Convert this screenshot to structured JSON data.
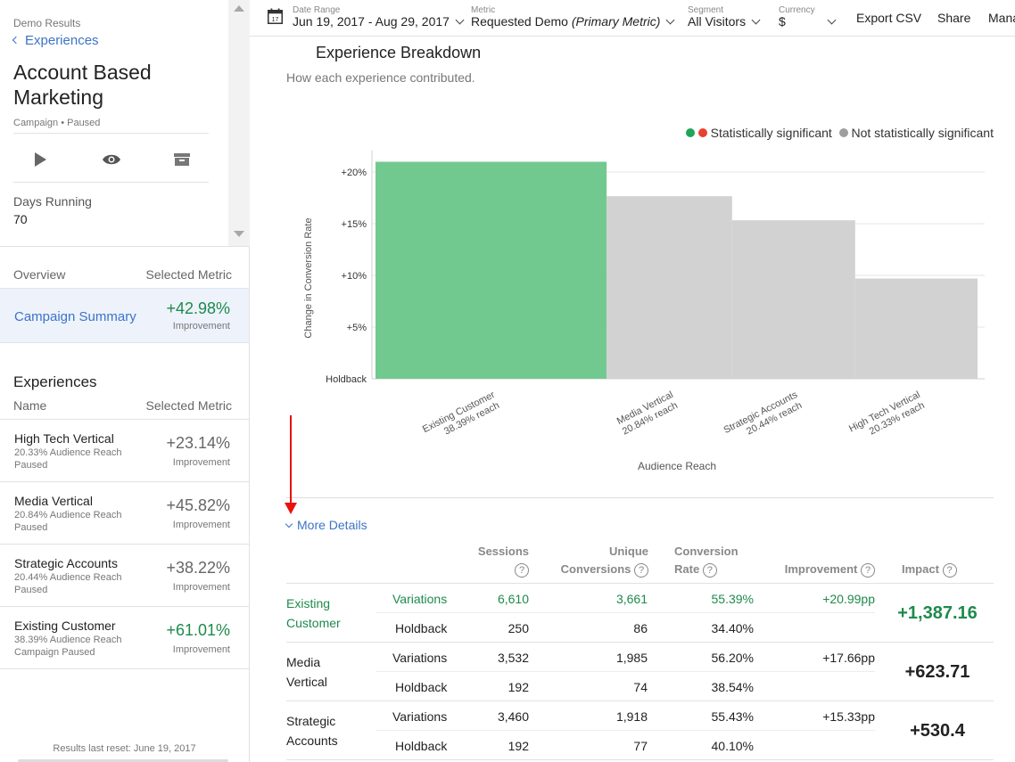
{
  "sidebar": {
    "breadcrumb": "Demo Results",
    "back_link": "Experiences",
    "campaign_title": "Account Based Marketing",
    "campaign_type": "Campaign",
    "campaign_status": "Paused",
    "days_running_label": "Days Running",
    "days_running_value": "70",
    "overview_label": "Overview",
    "selected_metric_label": "Selected Metric",
    "summary": {
      "label": "Campaign Summary",
      "value": "+42.98%",
      "sub": "Improvement"
    },
    "experiences_title": "Experiences",
    "name_label": "Name",
    "experiences": [
      {
        "name": "High Tech Vertical",
        "reach": "20.33% Audience Reach",
        "status": "Paused",
        "value": "+23.14%",
        "sub": "Improvement"
      },
      {
        "name": "Media Vertical",
        "reach": "20.84% Audience Reach",
        "status": "Paused",
        "value": "+45.82%",
        "sub": "Improvement"
      },
      {
        "name": "Strategic Accounts",
        "reach": "20.44% Audience Reach",
        "status": "Paused",
        "value": "+38.22%",
        "sub": "Improvement"
      },
      {
        "name": "Existing Customer",
        "reach": "38.39% Audience Reach",
        "status": "Campaign Paused",
        "value": "+61.01%",
        "sub": "Improvement"
      }
    ],
    "reset_text": "Results last reset: June 19, 2017"
  },
  "topbar": {
    "date_range_label": "Date Range",
    "date_range_value": "Jun 19, 2017 - Aug 29, 2017",
    "calendar_day": "17",
    "metric_label": "Metric",
    "metric_value": "Requested Demo",
    "metric_note": "(Primary Metric)",
    "segment_label": "Segment",
    "segment_value": "All Visitors",
    "currency_label": "Currency",
    "currency_value": "$",
    "export_label": "Export CSV",
    "share_label": "Share",
    "manage_label": "Mana"
  },
  "breakdown": {
    "title": "Experience Breakdown",
    "subtitle": "How each experience contributed.",
    "legend_sig": "Statistically significant",
    "legend_not_sig": "Not statistically significant",
    "more_details": "More Details"
  },
  "chart_data": {
    "type": "bar",
    "ylabel": "Change in Conversion Rate",
    "xlabel": "Audience Reach",
    "ylim": [
      0,
      22
    ],
    "yticks": [
      {
        "value": 0,
        "label": "Holdback"
      },
      {
        "value": 5,
        "label": "+5%"
      },
      {
        "value": 10,
        "label": "+10%"
      },
      {
        "value": 15,
        "label": "+15%"
      },
      {
        "value": 20,
        "label": "+20%"
      }
    ],
    "categories": [
      "Existing Customer",
      "Media Vertical",
      "Strategic Accounts",
      "High Tech Vertical"
    ],
    "reach_labels": [
      "38.39% reach",
      "20.84% reach",
      "20.44% reach",
      "20.33% reach"
    ],
    "reach": [
      38.39,
      20.84,
      20.44,
      20.33
    ],
    "values": [
      20.99,
      17.66,
      15.33,
      9.7
    ],
    "significant": [
      true,
      false,
      false,
      false
    ],
    "colors": {
      "significant": "#72c98f",
      "not_significant": "#d2d2d2",
      "sig_dot_green": "#1fa55a",
      "sig_dot_red": "#e8412f",
      "not_sig_dot": "#9e9e9e"
    },
    "grid": true,
    "legend": "top-right"
  },
  "table": {
    "headers": {
      "sessions": "Sessions",
      "unique1": "Unique",
      "unique2": "Conversions",
      "rate1": "Conversion",
      "rate2": "Rate",
      "improvement": "Improvement",
      "impact": "Impact"
    },
    "groups": [
      {
        "name_line1": "Existing",
        "name_line2": "Customer",
        "significant": true,
        "variations": {
          "label": "Variations",
          "sessions": "6,610",
          "conversions": "3,661",
          "rate": "55.39%",
          "improvement": "+20.99pp"
        },
        "holdback": {
          "label": "Holdback",
          "sessions": "250",
          "conversions": "86",
          "rate": "34.40%"
        },
        "impact": "+1,387.16"
      },
      {
        "name_line1": "Media",
        "name_line2": "Vertical",
        "significant": false,
        "variations": {
          "label": "Variations",
          "sessions": "3,532",
          "conversions": "1,985",
          "rate": "56.20%",
          "improvement": "+17.66pp"
        },
        "holdback": {
          "label": "Holdback",
          "sessions": "192",
          "conversions": "74",
          "rate": "38.54%"
        },
        "impact": "+623.71"
      },
      {
        "name_line1": "Strategic",
        "name_line2": "Accounts",
        "significant": false,
        "variations": {
          "label": "Variations",
          "sessions": "3,460",
          "conversions": "1,918",
          "rate": "55.43%",
          "improvement": "+15.33pp"
        },
        "holdback": {
          "label": "Holdback",
          "sessions": "192",
          "conversions": "77",
          "rate": "40.10%"
        },
        "impact": "+530.4"
      }
    ]
  }
}
